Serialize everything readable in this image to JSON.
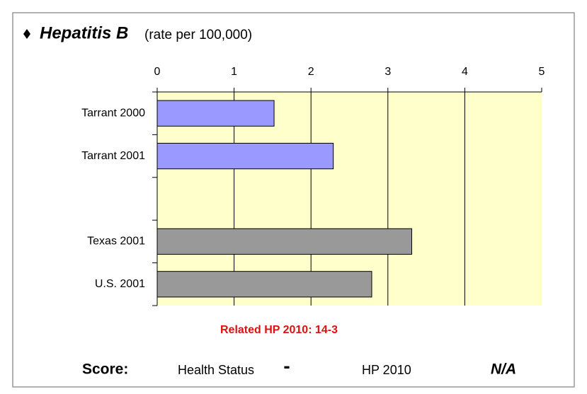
{
  "chart_data": {
    "type": "bar",
    "orientation": "horizontal",
    "title": "Hepatitis B",
    "subtitle": "(rate per 100,000)",
    "categories": [
      "Tarrant 2000",
      "Tarrant 2001",
      null,
      "Texas 2001",
      "U.S. 2001"
    ],
    "values": [
      1.52,
      2.29,
      null,
      3.31,
      2.79
    ],
    "colors": [
      "#9999ff",
      "#9999ff",
      null,
      "#999999",
      "#999999"
    ],
    "xlim": [
      0,
      5
    ],
    "xticks": [
      0,
      1,
      2,
      3,
      4,
      5
    ],
    "grid": true,
    "annotation": "Related HP 2010: 14-3",
    "footer": {
      "score_label": "Score:",
      "health_status": "Health Status",
      "health_status_value": "-",
      "hp_label": "HP 2010",
      "hp_value": "N/A"
    }
  }
}
